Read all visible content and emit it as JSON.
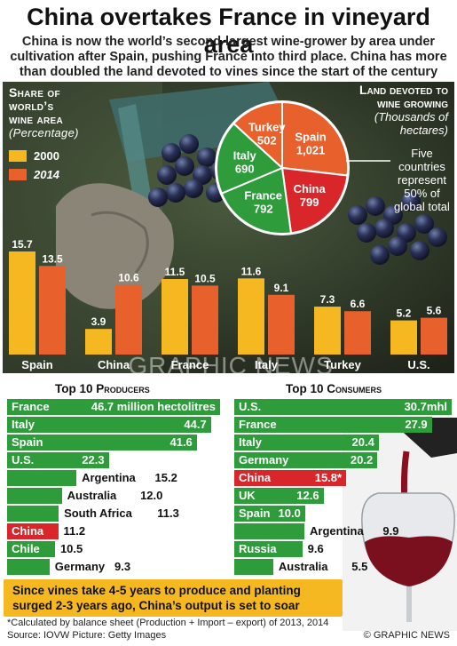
{
  "title": "China overtakes France in vineyard area",
  "subtitle": "China is now the world’s second-largest wine-grower by area under cultivation after Spain, pushing France into third place. China has more than doubled the land devoted to vines since the start of the century",
  "share_label": {
    "line1": "Share of",
    "line2": "world’s",
    "line3": "wine area",
    "line4": "(Percentage)"
  },
  "legend": [
    {
      "label": "2000",
      "color": "#f5b820"
    },
    {
      "label": "2014",
      "color": "#e8602c"
    }
  ],
  "land_label": {
    "line1": "Land devoted to",
    "line2": "wine growing",
    "line3": "(Thousands of",
    "line4": "hectares)"
  },
  "pie_note": "Five countries represent 50% of global total",
  "colors": {
    "bar_2000": "#f5b820",
    "bar_2014": "#e8602c",
    "green": "#2f9c3c",
    "red": "#d9262b",
    "gold": "#f5b820"
  },
  "watermark": "GRAPHIC NEWS",
  "chart_data": [
    {
      "type": "bar",
      "title": "Share of world’s wine area",
      "ylabel": "(Percentage)",
      "categories": [
        "Spain",
        "China",
        "France",
        "Italy",
        "Turkey",
        "U.S."
      ],
      "series": [
        {
          "name": "2000",
          "values": [
            15.7,
            3.9,
            11.5,
            11.6,
            7.3,
            5.2
          ]
        },
        {
          "name": "2014",
          "values": [
            13.5,
            10.6,
            10.5,
            9.1,
            6.6,
            5.6
          ]
        }
      ],
      "ylim": [
        0,
        16
      ]
    },
    {
      "type": "pie",
      "title": "Land devoted to wine growing",
      "subtitle": "(Thousands of hectares)",
      "slices": [
        {
          "label": "Spain",
          "value": 1021,
          "display": "1,021",
          "color": "#e8602c"
        },
        {
          "label": "China",
          "value": 799,
          "display": "799",
          "color": "#d9262b"
        },
        {
          "label": "France",
          "value": 792,
          "display": "792",
          "color": "#2f9c3c"
        },
        {
          "label": "Italy",
          "value": 690,
          "display": "690",
          "color": "#2f9c3c"
        },
        {
          "label": "Turkey",
          "value": 502,
          "display": "502",
          "color": "#e8602c"
        }
      ]
    },
    {
      "type": "bar",
      "title": "Top 10 Producers",
      "categories": [
        "France",
        "Italy",
        "Spain",
        "U.S.",
        "Argentina",
        "Australia",
        "South Africa",
        "China",
        "Chile",
        "Germany"
      ],
      "values": [
        46.7,
        44.7,
        41.6,
        22.3,
        15.2,
        12.0,
        11.3,
        11.2,
        10.5,
        9.3
      ],
      "labels": [
        "46.7 million hectolitres",
        "44.7",
        "41.6",
        "22.3",
        "15.2",
        "12.0",
        "11.3",
        "11.2",
        "10.5",
        "9.3"
      ],
      "highlight": "China"
    },
    {
      "type": "bar",
      "title": "Top 10 Consumers",
      "categories": [
        "U.S.",
        "France",
        "Italy",
        "Germany",
        "China",
        "UK",
        "Spain",
        "Argentina",
        "Russia",
        "Australia"
      ],
      "values": [
        30.7,
        27.9,
        20.4,
        20.2,
        15.8,
        12.6,
        10.0,
        9.9,
        9.6,
        5.5
      ],
      "labels": [
        "30.7mhl",
        "27.9",
        "20.4",
        "20.2",
        "15.8*",
        "12.6",
        "10.0",
        "9.9",
        "9.6",
        "5.5"
      ],
      "highlight": "China"
    }
  ],
  "producers_head": {
    "top": "Top 10 ",
    "rest": "Producers"
  },
  "consumers_head": {
    "top": "Top 10 ",
    "rest": "Consumers"
  },
  "note": "Since vines take 4-5 years to produce and planting surged 2-3 years ago, China’s output is set to soar",
  "footnote": "*Calculated by balance sheet (Production + Import – export) of 2013, 2014",
  "source": "Source: IOVW   Picture: Getty Images",
  "credit": "© GRAPHIC NEWS"
}
